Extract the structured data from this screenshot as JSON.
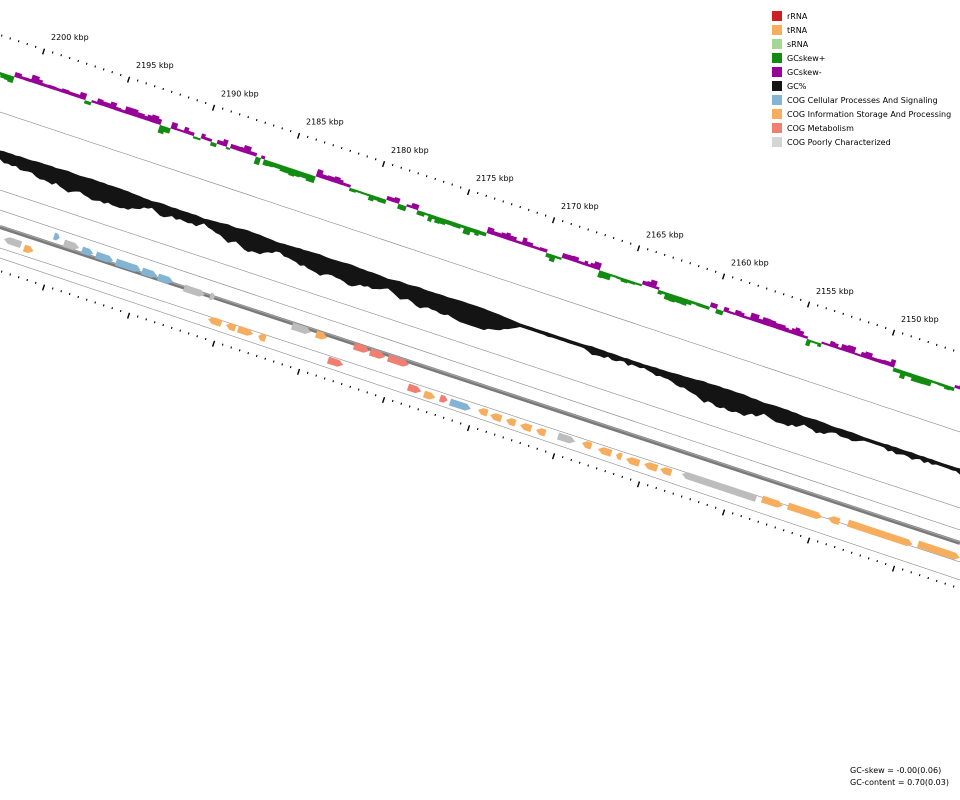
{
  "tick_labels": [
    "2200 kbp",
    "2195 kbp",
    "2190 kbp",
    "2185 kbp",
    "2180 kbp",
    "2175 kbp",
    "2170 kbp",
    "2165 kbp",
    "2160 kbp",
    "2155 kbp",
    "2150 kbp"
  ],
  "legend": [
    {
      "label": "rRNA",
      "color": "#cc1f1f"
    },
    {
      "label": "tRNA",
      "color": "#f6ae5e"
    },
    {
      "label": "sRNA",
      "color": "#a4d795"
    },
    {
      "label": "GCskew+",
      "color": "#118c11"
    },
    {
      "label": "GCskew-",
      "color": "#970097"
    },
    {
      "label": "GC%",
      "color": "#141414"
    },
    {
      "label": "COG Cellular Processes And Signaling",
      "color": "#84b4d4"
    },
    {
      "label": "COG Information Storage And Processing",
      "color": "#f6ae5e"
    },
    {
      "label": "COG Metabolism",
      "color": "#f07f72"
    },
    {
      "label": "COG Poorly Characterized",
      "color": "#d5d5d5"
    }
  ],
  "stats": {
    "gc_skew": "GC-skew = -0.00(0.06)",
    "gc_content": "GC-content = 0.70(0.03)"
  }
}
